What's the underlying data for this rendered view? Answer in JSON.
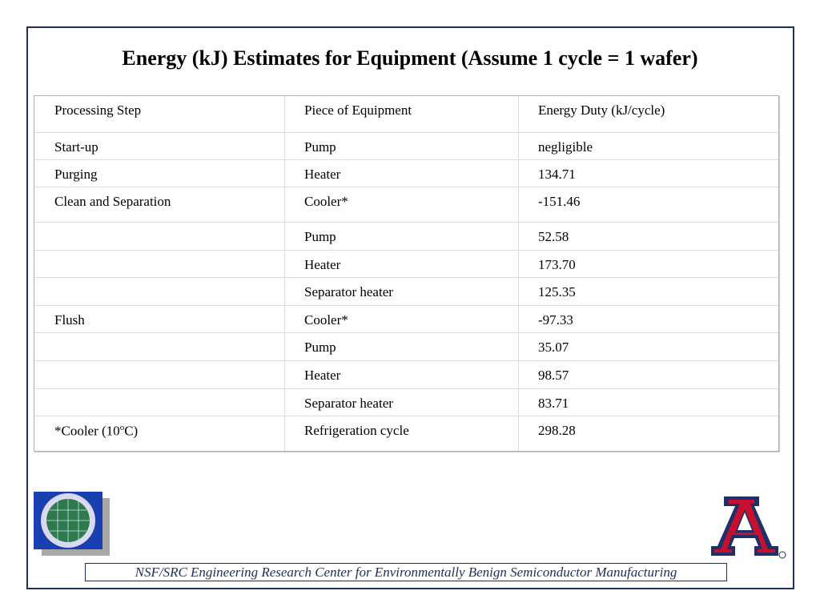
{
  "title": "Energy (kJ)  Estimates for Equipment (Assume 1 cycle = 1 wafer)",
  "table": {
    "header": [
      "Processing Step",
      "Piece of Equipment",
      "Energy Duty (kJ/cycle)"
    ],
    "rows": [
      [
        "Start-up",
        "Pump",
        "negligible"
      ],
      [
        "Purging",
        "Heater",
        "134.71"
      ],
      [
        "Clean and Separation",
        "Cooler*",
        "-151.46"
      ],
      [
        null,
        "Pump",
        "52.58"
      ],
      [
        null,
        "Heater",
        "173.70"
      ],
      [
        null,
        "Separator heater",
        "125.35"
      ],
      [
        "Flush",
        "Cooler*",
        "-97.33"
      ],
      [
        null,
        "Pump",
        "35.07"
      ],
      [
        null,
        "Heater",
        "98.57"
      ],
      [
        null,
        "Separator heater",
        "83.71"
      ],
      [
        {
          "before": "*Cooler (10",
          "sup": "o",
          "after": "C)"
        },
        "Refrigeration cycle",
        "298.28"
      ]
    ]
  },
  "footer": "NSF/SRC Engineering Research Center for Environmentally Benign Semiconductor Manufacturing"
}
